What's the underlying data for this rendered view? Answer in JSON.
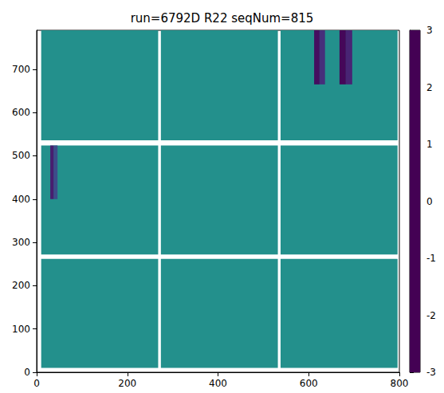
{
  "chart_data": {
    "type": "heatmap",
    "title": "run=6792D R22 seqNum=815",
    "color": "viridis",
    "xlim": [
      0,
      800
    ],
    "ylim": [
      0,
      790
    ],
    "xticks": [
      0,
      200,
      400,
      600,
      800
    ],
    "yticks": [
      0,
      100,
      200,
      300,
      400,
      500,
      600,
      700
    ],
    "cells": [
      [
        10,
        268,
        10,
        262,
        0
      ],
      [
        274,
        532,
        10,
        262,
        0
      ],
      [
        538,
        796,
        10,
        262,
        0
      ],
      [
        10,
        268,
        272,
        524,
        0
      ],
      [
        274,
        532,
        272,
        524,
        0
      ],
      [
        538,
        796,
        272,
        524,
        0
      ],
      [
        10,
        268,
        536,
        790,
        0
      ],
      [
        274,
        532,
        536,
        790,
        0
      ],
      [
        538,
        796,
        536,
        790,
        0
      ],
      [
        30,
        38,
        400,
        524,
        -2.5
      ],
      [
        38,
        46,
        400,
        524,
        -1.6
      ],
      [
        612,
        624,
        665,
        790,
        -2.8
      ],
      [
        624,
        636,
        665,
        790,
        -2.2
      ],
      [
        668,
        682,
        665,
        790,
        -2.9
      ],
      [
        682,
        696,
        665,
        790,
        -2.4
      ]
    ],
    "colorbar": {
      "range": [
        -3,
        3
      ],
      "ticks": [
        -3,
        -2,
        -1,
        0,
        1,
        2,
        3
      ]
    }
  }
}
